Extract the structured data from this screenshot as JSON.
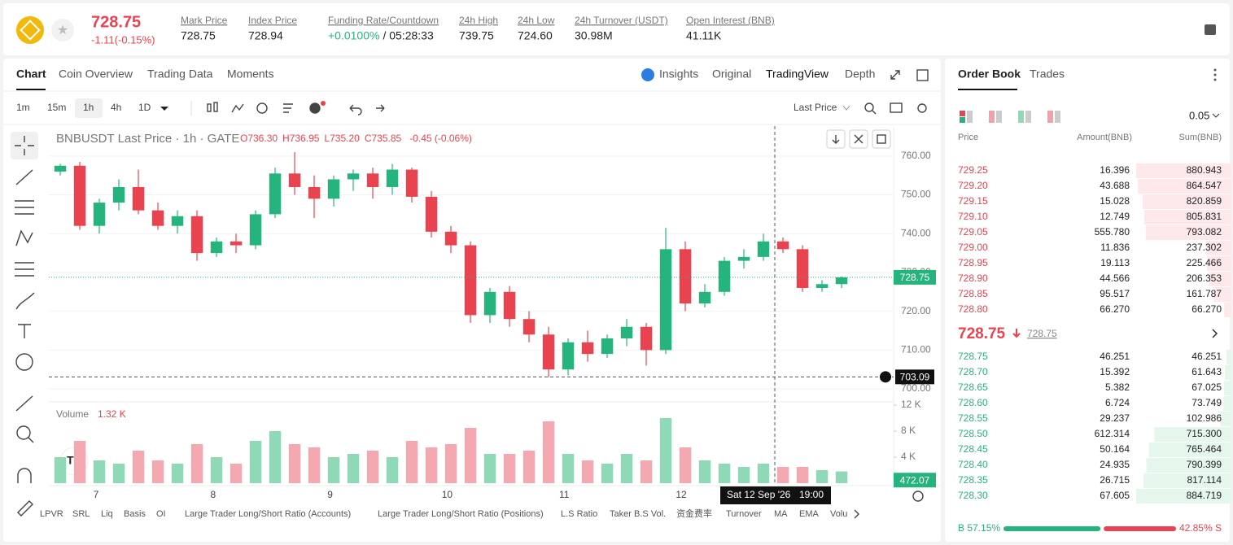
{
  "header": {
    "price": "728.75",
    "change": "-1.11(-0.15%)",
    "stats": [
      {
        "label": "Mark Price",
        "value": "728.75"
      },
      {
        "label": "Index Price",
        "value": "728.94"
      },
      {
        "label": "Funding Rate/Countdown",
        "value": "+0.0100%",
        "extra": "/ 05:28:33"
      },
      {
        "label": "24h High",
        "value": "739.75"
      },
      {
        "label": "24h Low",
        "value": "724.60"
      },
      {
        "label": "24h Turnover (USDT)",
        "value": "30.98M"
      },
      {
        "label": "Open Interest (BNB)",
        "value": "41.11K"
      }
    ]
  },
  "tabs": [
    "Chart",
    "Coin Overview",
    "Trading Data",
    "Moments"
  ],
  "views": [
    "Insights",
    "Original",
    "TradingView",
    "Depth"
  ],
  "intervals": [
    "1m",
    "15m",
    "1h",
    "4h",
    "1D"
  ],
  "price_source": "Last Price",
  "indicators": [
    "LPVR",
    "SRL",
    "Liq",
    "Basis",
    "OI",
    "Large Trader Long/Short Ratio (Accounts)",
    "Large Trader Long/Short Ratio (Positions)",
    "L.S Ratio",
    "Taker B.S Vol.",
    "资金费率",
    "Turnover",
    "MA",
    "EMA",
    "Volu"
  ],
  "chart_data": {
    "type": "candlestick",
    "title": "BNBUSDT Last Price · 1h · GATE",
    "ohlc": [
      "O736.30",
      "H736.95",
      "L735.20",
      "C735.85"
    ],
    "change": "-0.45 (-0.06%)",
    "up_color": "#26b47e",
    "down_color": "#e8434f",
    "candles": [
      [
        756,
        758,
        755,
        757.5
      ],
      [
        757.5,
        758.5,
        741,
        742
      ],
      [
        742,
        749,
        740,
        748
      ],
      [
        748,
        754,
        746,
        752
      ],
      [
        752,
        756.5,
        745,
        746
      ],
      [
        746,
        748,
        741,
        742
      ],
      [
        742,
        746,
        740,
        744.5
      ],
      [
        744.5,
        746,
        733,
        735
      ],
      [
        735,
        739,
        734,
        738
      ],
      [
        738,
        740,
        735,
        737
      ],
      [
        737,
        746,
        736,
        745
      ],
      [
        745,
        757,
        744,
        755.5
      ],
      [
        755.5,
        761,
        750,
        752
      ],
      [
        752,
        755,
        744,
        749
      ],
      [
        749,
        755,
        747,
        754
      ],
      [
        754,
        756.5,
        751,
        755.5
      ],
      [
        755.5,
        757,
        749,
        752
      ],
      [
        752,
        758,
        750,
        756.5
      ],
      [
        756.5,
        757,
        748,
        749.5
      ],
      [
        749.5,
        751,
        739,
        740.5
      ],
      [
        740.5,
        742,
        735,
        737
      ],
      [
        737,
        738,
        717,
        719
      ],
      [
        719,
        726,
        717,
        725
      ],
      [
        725,
        726.5,
        716,
        718
      ],
      [
        718,
        720,
        712,
        714
      ],
      [
        714,
        716,
        703,
        705
      ],
      [
        705,
        713,
        703.5,
        712
      ],
      [
        712,
        715,
        707,
        709
      ],
      [
        709,
        714,
        708,
        713
      ],
      [
        713,
        718,
        711,
        716
      ],
      [
        716,
        717,
        706,
        710
      ],
      [
        710,
        741.5,
        709,
        736
      ],
      [
        736,
        738,
        720,
        722
      ],
      [
        722,
        727,
        721,
        725
      ],
      [
        725,
        734,
        724,
        733
      ],
      [
        733,
        736,
        731,
        734
      ],
      [
        734,
        740,
        733,
        738
      ],
      [
        738,
        739,
        735,
        736
      ],
      [
        736,
        737,
        725,
        726
      ],
      [
        726,
        728,
        725,
        727
      ],
      [
        727,
        729,
        726,
        728.75
      ]
    ],
    "x_labels": [
      "7",
      "8",
      "9",
      "10",
      "11",
      "12"
    ],
    "ylim": [
      697.5,
      767.3
    ],
    "yticks": [
      {
        "value": 700,
        "label": "700.00"
      },
      {
        "value": 710,
        "label": "710.00"
      },
      {
        "value": 720,
        "label": "720.00"
      },
      {
        "value": 730,
        "label": "730.00"
      },
      {
        "value": 740,
        "label": "740.00"
      },
      {
        "value": 750,
        "label": "750.00"
      },
      {
        "value": 760,
        "label": "760.00"
      }
    ],
    "last_price": 728.75,
    "crosshair_price": 703.09,
    "crosshair_date": "Sat 12 Sep '26",
    "crosshair_time": "19:00",
    "volume": {
      "label": "Volume",
      "current": "1.32 K",
      "marker": 472.07,
      "ylim": [
        0,
        12125
      ],
      "yticks": [
        {
          "value": 4000,
          "label": "4 K"
        },
        {
          "value": 8000,
          "label": "8 K"
        },
        {
          "value": 12000,
          "label": "12 K"
        }
      ],
      "values": [
        4000,
        6500,
        3500,
        3000,
        5000,
        3500,
        3000,
        6000,
        4000,
        3000,
        6500,
        8000,
        6000,
        5500,
        4000,
        4500,
        5000,
        4000,
        6500,
        5500,
        6000,
        8500,
        4500,
        4500,
        5000,
        9500,
        4500,
        3500,
        3000,
        4500,
        3500,
        10000,
        5500,
        3500,
        3000,
        2500,
        3000,
        2500,
        2500,
        2000,
        1800
      ]
    }
  },
  "order_book": {
    "tabs": [
      "Order Book",
      "Trades"
    ],
    "step": "0.05",
    "columns": [
      "Price",
      "Amount(BNB)",
      "Sum(BNB)"
    ],
    "asks": [
      [
        "729.25",
        "16.396",
        "880.943"
      ],
      [
        "729.20",
        "43.688",
        "864.547"
      ],
      [
        "729.15",
        "15.028",
        "820.859"
      ],
      [
        "729.10",
        "12.749",
        "805.831"
      ],
      [
        "729.05",
        "555.780",
        "793.082"
      ],
      [
        "729.00",
        "11.836",
        "237.302"
      ],
      [
        "728.95",
        "19.113",
        "225.466"
      ],
      [
        "728.90",
        "44.566",
        "206.353"
      ],
      [
        "728.85",
        "95.517",
        "161.787"
      ],
      [
        "728.80",
        "66.270",
        "66.270"
      ]
    ],
    "mid": "728.75",
    "mid_mark": "728.75",
    "bids": [
      [
        "728.75",
        "46.251",
        "46.251"
      ],
      [
        "728.70",
        "15.392",
        "61.643"
      ],
      [
        "728.65",
        "5.382",
        "67.025"
      ],
      [
        "728.60",
        "6.724",
        "73.749"
      ],
      [
        "728.55",
        "29.237",
        "102.986"
      ],
      [
        "728.50",
        "612.314",
        "715.300"
      ],
      [
        "728.45",
        "50.164",
        "765.464"
      ],
      [
        "728.40",
        "24.935",
        "790.399"
      ],
      [
        "728.35",
        "26.715",
        "817.114"
      ],
      [
        "728.30",
        "67.605",
        "884.719"
      ]
    ],
    "buy": 57.15,
    "buy_label": "B 57.15%",
    "sell": 42.85,
    "sell_label": "42.85% S"
  }
}
